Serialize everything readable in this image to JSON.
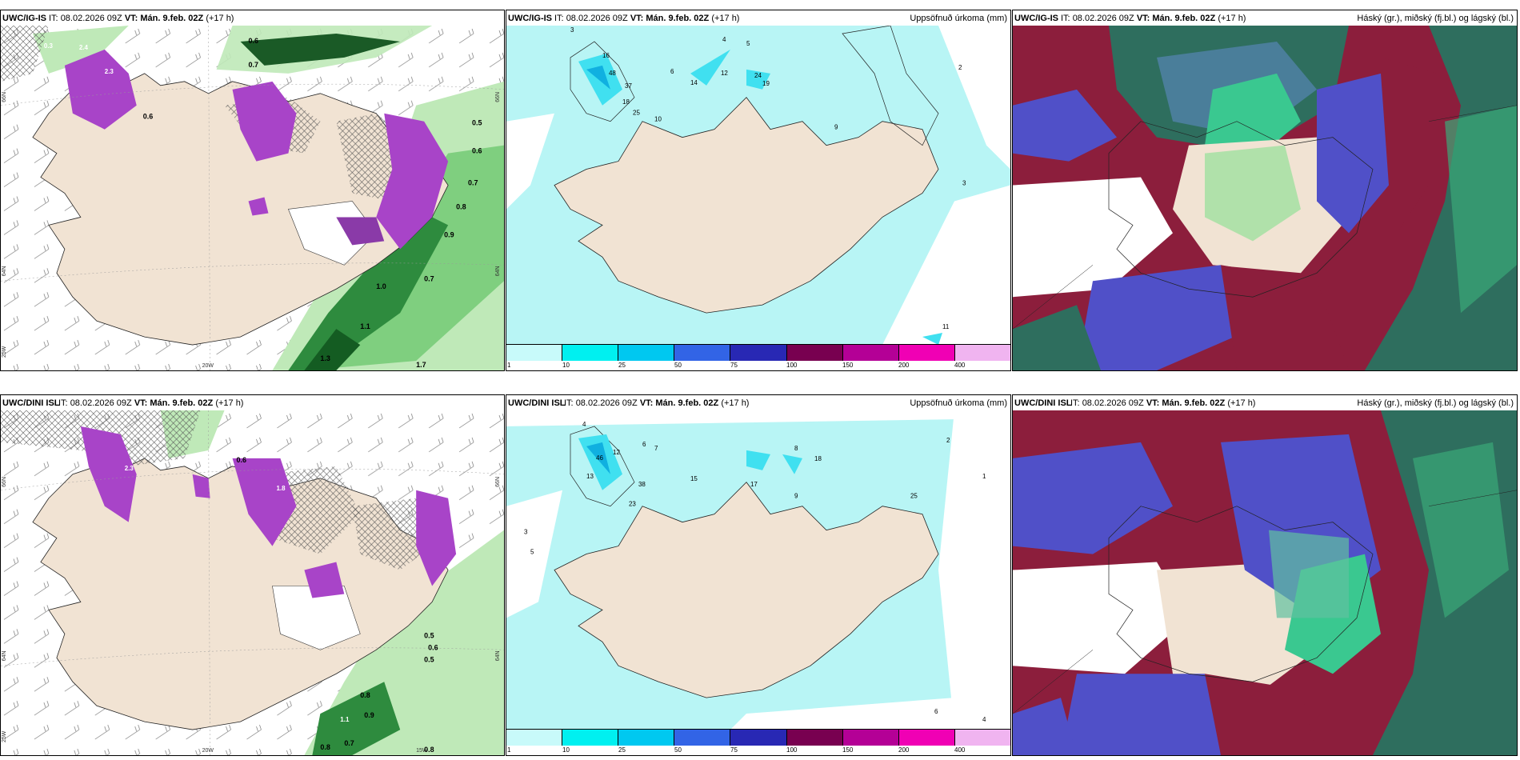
{
  "panels": [
    {
      "model": "UWC/IG-IS",
      "it_label": "IT:",
      "it": "08.02.2026 09Z",
      "vt_label": "VT:",
      "vt": "Mán. 9.feb. 02Z",
      "lead": "(+17 h)",
      "title": ""
    },
    {
      "model": "UWC/IG-IS",
      "it_label": "IT:",
      "it": "08.02.2026 09Z",
      "vt_label": "VT:",
      "vt": "Mán. 9.feb. 02Z",
      "lead": "(+17 h)",
      "title": "Uppsöfnuð úrkoma (mm)"
    },
    {
      "model": "UWC/IG-IS",
      "it_label": "IT:",
      "it": "08.02.2026 09Z",
      "vt_label": "VT:",
      "vt": "Mán. 9.feb. 02Z",
      "lead": "(+17 h)",
      "title": "Háský (gr.), miðský (fj.bl.) og lágský (bl.)"
    },
    {
      "model": "UWC/DINI ISL",
      "it_label": "IT:",
      "it": "08.02.2026 09Z",
      "vt_label": "VT:",
      "vt": "Mán. 9.feb. 02Z",
      "lead": "(+17 h)",
      "title": ""
    },
    {
      "model": "UWC/DINI ISL",
      "it_label": "IT:",
      "it": "08.02.2026 09Z",
      "vt_label": "VT:",
      "vt": "Mán. 9.feb. 02Z",
      "lead": "(+17 h)",
      "title": "Uppsöfnuð úrkoma (mm)"
    },
    {
      "model": "UWC/DINI ISL",
      "it_label": "IT:",
      "it": "08.02.2026 09Z",
      "vt_label": "VT:",
      "vt": "Mán. 9.feb. 02Z",
      "lead": "(+17 h)",
      "title": "Háský (gr.), miðský (fj.bl.) og lágský (bl.)"
    }
  ],
  "coords_top": {
    "lat_66": "66N",
    "lat_64": "64N",
    "lon_25": "25W",
    "lon_20": "20W",
    "lon_15": "15W"
  },
  "coords_bottom": {
    "lat_66": "66N",
    "lat_64": "64N",
    "lon_25": "25W",
    "lon_20": "20W",
    "lon_15": "15W"
  },
  "precip_colorbar": {
    "colors": [
      "#c8fafa",
      "#00f0f0",
      "#00c8f0",
      "#3264e6",
      "#2828b4",
      "#780050",
      "#b40096",
      "#f000b4",
      "#f0b4f0"
    ],
    "ticks": [
      "1",
      "10",
      "25",
      "50",
      "75",
      "100",
      "150",
      "200",
      "400"
    ]
  },
  "legend_colors": {
    "land": "#f1e3d3",
    "light_precip": "#b8f5f5",
    "snow_green": "#b6e8b0",
    "dark_green": "#1e6e2e",
    "purple": "#a020c0",
    "high_cloud": "#2e6e5e",
    "mid_cloud": "#5050c8",
    "low_cloud": "#8c1e3c"
  },
  "labels_top_left": [
    "0.6",
    "0.7",
    "0.6",
    "0.3",
    "2.4",
    "2.3",
    "0.5",
    "0.6",
    "0.7",
    "0.8",
    "0.9",
    "1.0",
    "1.1",
    "1.3",
    "1.7",
    "0.7"
  ],
  "labels_bottom_left": [
    "0.6",
    "0.5",
    "0.6",
    "0.5",
    "0.8",
    "0.9",
    "1.1",
    "0.8",
    "0.7",
    "0.8",
    "2.3",
    "1.8"
  ],
  "labels_top_mid": [
    "3",
    "4",
    "5",
    "6",
    "9",
    "12",
    "14",
    "16",
    "18",
    "19",
    "24",
    "25",
    "37",
    "48",
    "10",
    "11",
    "2",
    "3"
  ],
  "labels_bottom_mid": [
    "3",
    "4",
    "5",
    "6",
    "7",
    "8",
    "9",
    "12",
    "13",
    "15",
    "17",
    "18",
    "23",
    "25",
    "38",
    "46",
    "2",
    "1",
    "6",
    "4"
  ]
}
